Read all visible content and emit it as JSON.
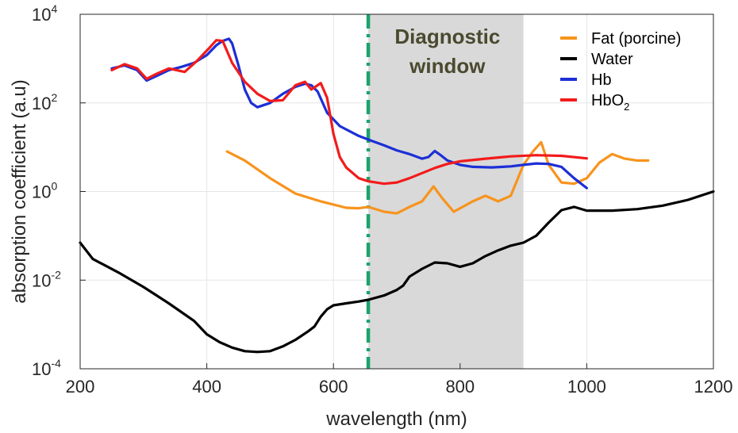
{
  "chart_data": {
    "type": "line",
    "xlabel": "wavelength (nm)",
    "ylabel": "absorption coefficient (a.u)",
    "xlim": [
      200,
      1200
    ],
    "ylim": [
      0.0001,
      10000
    ],
    "yscale": "log",
    "grid": true,
    "legend_position": "top-right",
    "x_ticks": [
      200,
      400,
      600,
      800,
      1000,
      1200
    ],
    "y_ticks": [
      {
        "value": 0.0001,
        "base": "10",
        "exp": "-4"
      },
      {
        "value": 0.01,
        "base": "10",
        "exp": "-2"
      },
      {
        "value": 1,
        "base": "10",
        "exp": "0"
      },
      {
        "value": 100,
        "base": "10",
        "exp": "2"
      },
      {
        "value": 10000,
        "base": "10",
        "exp": "4"
      }
    ],
    "shaded_region": {
      "x": [
        655,
        900
      ],
      "color": "#d9d9d9",
      "label_line1": "Diagnostic",
      "label_line2": "window"
    },
    "vertical_marker": {
      "x": 655,
      "color": "#1aa36a"
    },
    "series": [
      {
        "name": "Fat (porcine)",
        "name_main": "Fat (porcine)",
        "name_sub": "",
        "color": "#f7941d",
        "x": [
          432,
          460,
          500,
          540,
          580,
          620,
          640,
          655,
          680,
          700,
          720,
          740,
          758,
          772,
          790,
          820,
          840,
          860,
          880,
          900,
          915,
          928,
          940,
          960,
          980,
          1000,
          1020,
          1040,
          1060,
          1080,
          1097
        ],
        "y": [
          8,
          5,
          2,
          0.9,
          0.6,
          0.43,
          0.42,
          0.45,
          0.35,
          0.32,
          0.45,
          0.6,
          1.3,
          0.7,
          0.35,
          0.6,
          0.8,
          0.6,
          0.8,
          4,
          8,
          13,
          4,
          1.6,
          1.5,
          2,
          4.5,
          7,
          5.5,
          5,
          5
        ]
      },
      {
        "name": "Water",
        "name_main": "Water",
        "name_sub": "",
        "color": "#000000",
        "x": [
          200,
          220,
          260,
          300,
          340,
          380,
          400,
          420,
          440,
          460,
          480,
          500,
          520,
          540,
          560,
          570,
          580,
          590,
          600,
          620,
          640,
          655,
          680,
          700,
          710,
          720,
          740,
          760,
          780,
          800,
          820,
          840,
          860,
          880,
          900,
          920,
          940,
          960,
          980,
          1000,
          1040,
          1080,
          1120,
          1160,
          1200
        ],
        "y": [
          0.07,
          0.03,
          0.015,
          0.007,
          0.003,
          0.0012,
          0.0006,
          0.0004,
          0.0003,
          0.00025,
          0.00024,
          0.00025,
          0.00032,
          0.00045,
          0.0007,
          0.0009,
          0.0015,
          0.0022,
          0.0027,
          0.003,
          0.0033,
          0.0036,
          0.0045,
          0.006,
          0.0075,
          0.012,
          0.018,
          0.025,
          0.024,
          0.02,
          0.024,
          0.035,
          0.047,
          0.06,
          0.07,
          0.1,
          0.2,
          0.38,
          0.45,
          0.37,
          0.37,
          0.4,
          0.48,
          0.65,
          1.0
        ]
      },
      {
        "name": "Hb",
        "name_main": "Hb",
        "name_sub": "",
        "color": "#1c2fd6",
        "x": [
          250,
          270,
          290,
          305,
          320,
          340,
          360,
          380,
          400,
          415,
          425,
          435,
          440,
          450,
          460,
          470,
          480,
          500,
          520,
          540,
          555,
          565,
          575,
          590,
          610,
          640,
          660,
          680,
          700,
          720,
          740,
          750,
          760,
          770,
          780,
          800,
          820,
          850,
          880,
          900,
          920,
          940,
          960,
          980,
          1000
        ],
        "y": [
          600,
          700,
          550,
          320,
          400,
          550,
          650,
          800,
          1200,
          2000,
          2500,
          2800,
          2200,
          700,
          200,
          100,
          80,
          100,
          160,
          230,
          270,
          250,
          180,
          60,
          30,
          18,
          14,
          11,
          8.5,
          7,
          5.5,
          6,
          8.2,
          6.5,
          5,
          4,
          3.6,
          3.5,
          3.7,
          4,
          4.3,
          4.2,
          3.6,
          2,
          1.2
        ]
      },
      {
        "name": "HbO2",
        "name_main": "HbO",
        "name_sub": "2",
        "color": "#f21b1b",
        "x": [
          250,
          270,
          290,
          305,
          320,
          340,
          365,
          385,
          405,
          415,
          425,
          440,
          460,
          480,
          500,
          520,
          540,
          555,
          565,
          575,
          580,
          590,
          600,
          610,
          620,
          640,
          655,
          680,
          700,
          720,
          740,
          760,
          780,
          800,
          840,
          880,
          920,
          960,
          1000
        ],
        "y": [
          550,
          750,
          600,
          350,
          450,
          600,
          500,
          900,
          1800,
          2600,
          2500,
          800,
          300,
          160,
          110,
          115,
          250,
          300,
          200,
          250,
          280,
          130,
          20,
          6,
          3.5,
          2,
          1.7,
          1.5,
          1.6,
          2,
          2.6,
          3.4,
          4.2,
          4.8,
          5.5,
          6.2,
          6.6,
          6.4,
          5.6
        ]
      }
    ]
  }
}
